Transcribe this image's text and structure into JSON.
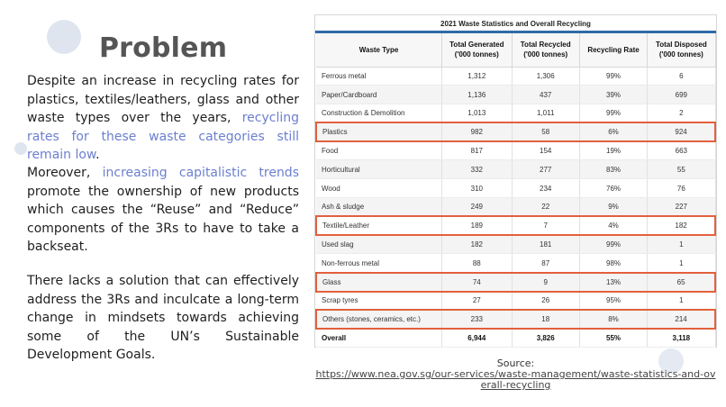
{
  "slide": {
    "title": "Problem",
    "p1_a": "Despite an increase in recycling rates for plastics, textiles/leathers, glass and other waste types over the years, ",
    "p1_b": "recycling rates for these waste categories still remain low",
    "p1_c": ".",
    "p2_a": "Moreover, ",
    "p2_b": "increasing capitalistic trends",
    "p2_c": " promote the ownership of new products which causes the “Reuse” and “Reduce” components of the 3Rs to have to take a backseat.",
    "p3": "There lacks a solution that can effectively address the 3Rs and inculcate a long-term change in mindsets towards achieving some of the UN’s Sustainable Development Goals.",
    "source_label": "Source:",
    "source_url": "https://www.nea.gov.sg/our-services/waste-management/waste-statistics-and-overall-recycling",
    "highlight_color": "#6b7fcf",
    "box_color": "#e2603c"
  },
  "table": {
    "title": "2021 Waste Statistics and Overall Recycling",
    "headers": [
      "Waste Type",
      "Total Generated ('000 tonnes)",
      "Total Recycled ('000 tonnes)",
      "Recycling Rate",
      "Total Disposed ('000 tonnes)"
    ],
    "rows": [
      [
        "Ferrous metal",
        "1,312",
        "1,306",
        "99%",
        "6"
      ],
      [
        "Paper/Cardboard",
        "1,136",
        "437",
        "39%",
        "699"
      ],
      [
        "Construction & Demolition",
        "1,013",
        "1,011",
        "99%",
        "2"
      ],
      [
        "Plastics",
        "982",
        "58",
        "6%",
        "924"
      ],
      [
        "Food",
        "817",
        "154",
        "19%",
        "663"
      ],
      [
        "Horticultural",
        "332",
        "277",
        "83%",
        "55"
      ],
      [
        "Wood",
        "310",
        "234",
        "76%",
        "76"
      ],
      [
        "Ash & sludge",
        "249",
        "22",
        "9%",
        "227"
      ],
      [
        "Textile/Leather",
        "189",
        "7",
        "4%",
        "182"
      ],
      [
        "Used slag",
        "182",
        "181",
        "99%",
        "1"
      ],
      [
        "Non-ferrous metal",
        "88",
        "87",
        "98%",
        "1"
      ],
      [
        "Glass",
        "74",
        "9",
        "13%",
        "65"
      ],
      [
        "Scrap tyres",
        "27",
        "26",
        "95%",
        "1"
      ],
      [
        "Others (stones, ceramics, etc.)",
        "233",
        "18",
        "8%",
        "214"
      ]
    ],
    "highlighted_rows": [
      "Plastics",
      "Textile/Leather",
      "Glass",
      "Others (stones, ceramics, etc.)"
    ],
    "overall": [
      "Overall",
      "6,944",
      "3,826",
      "55%",
      "3,118"
    ]
  }
}
